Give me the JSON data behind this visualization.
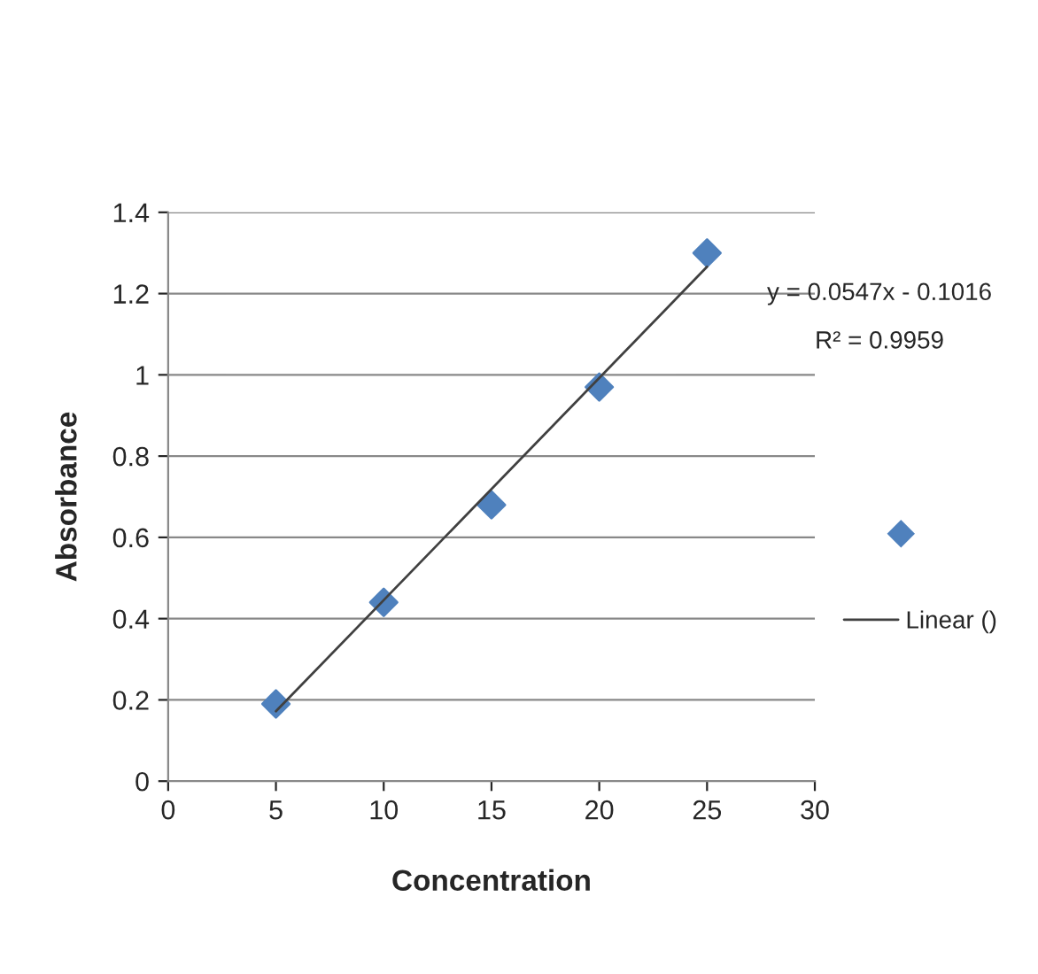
{
  "chart_data": {
    "type": "scatter",
    "xlabel": "Concentration",
    "ylabel": "Absorbance",
    "x": [
      5,
      10,
      15,
      20,
      25
    ],
    "series": [
      {
        "type": "scatter",
        "color": "#4f81bd",
        "marker": "diamond",
        "values": [
          0.19,
          0.44,
          0.68,
          0.97,
          1.3
        ]
      },
      {
        "type": "line",
        "name": "Linear ()",
        "color": "#404040",
        "marker": "none",
        "x": [
          5,
          25
        ],
        "values": [
          0.172,
          1.266
        ]
      }
    ],
    "annotations": [
      "y = 0.0547x - 0.1016",
      "R² = 0.9959"
    ],
    "xlim": [
      0,
      30
    ],
    "xticks": [
      0,
      5,
      10,
      15,
      20,
      25,
      30
    ],
    "ylim": [
      0,
      1.4
    ],
    "yticks": [
      0,
      0.2,
      0.4,
      0.6,
      0.8,
      1,
      1.2,
      1.4
    ],
    "grid": "y",
    "legend": "right"
  }
}
